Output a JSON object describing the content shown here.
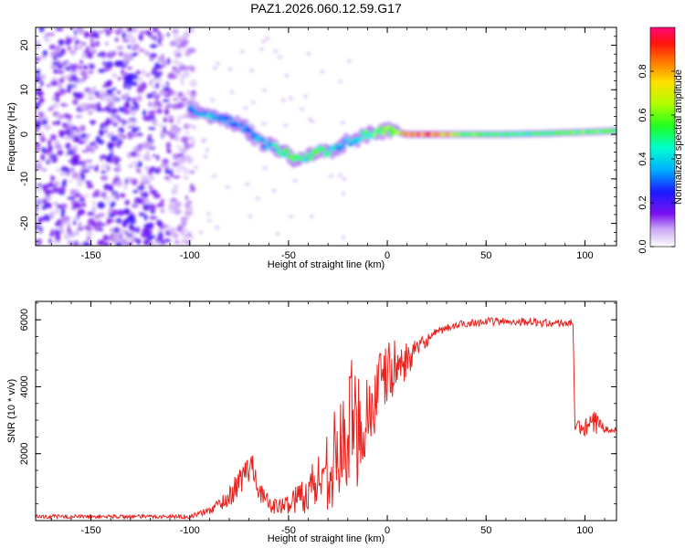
{
  "title": "PAZ1.2026.060.12.59.G17",
  "colors": {
    "background": "#ffffff",
    "snr_line": "#e8231f",
    "axis": "#000000"
  },
  "chart_data": [
    {
      "type": "heatmap",
      "name": "spectrogram",
      "xlabel": "Height of straight line (km)",
      "ylabel": "Frequency (Hz)",
      "xlim": [
        -178,
        116
      ],
      "ylim": [
        -25,
        24
      ],
      "xticks": [
        -150,
        -100,
        -50,
        0,
        50,
        100
      ],
      "xtick_labels": [
        "-150",
        "-100",
        "-50",
        "0",
        "50",
        "100"
      ],
      "yticks": [
        -20,
        -10,
        0,
        10,
        20
      ],
      "ytick_labels": [
        "-20",
        "-10",
        "0",
        "10",
        "20"
      ],
      "noise_region": {
        "x": [
          -178,
          -98
        ],
        "y": [
          -25,
          24
        ],
        "amplitude": 0.15
      },
      "ridge": {
        "x": [
          -100,
          -90,
          -80,
          -72,
          -65,
          -58,
          -50,
          -45,
          -40,
          -35,
          -30,
          -22,
          -15,
          -10,
          -5,
          0,
          5,
          10,
          20,
          40,
          60,
          80,
          100,
          116
        ],
        "freq": [
          5.5,
          4.5,
          3,
          1.5,
          -1.5,
          -3,
          -4.5,
          -6,
          -5,
          -3.5,
          -4,
          -2,
          -1,
          0,
          0.5,
          1,
          0.5,
          0,
          0,
          0,
          0,
          0.2,
          0.5,
          0.8
        ],
        "amplitude": [
          0.3,
          0.35,
          0.3,
          0.3,
          0.35,
          0.4,
          0.55,
          0.5,
          0.45,
          0.55,
          0.45,
          0.35,
          0.4,
          0.5,
          0.55,
          0.6,
          0.7,
          0.85,
          0.9,
          0.55,
          0.5,
          0.5,
          0.55,
          0.5
        ]
      }
    },
    {
      "type": "colorbar",
      "label": "Normalized spectral amplitude",
      "range": [
        0,
        1
      ],
      "ticks": [
        0.0,
        0.2,
        0.4,
        0.6,
        0.8
      ],
      "tick_labels": [
        "0.0",
        "0.2",
        "0.4",
        "0.6",
        "0.8"
      ]
    },
    {
      "type": "line",
      "name": "snr",
      "xlabel": "Height of straight line (km)",
      "ylabel": "SNR (10 * v/v)",
      "xlim": [
        -178,
        116
      ],
      "ylim": [
        0,
        6550
      ],
      "xticks": [
        -150,
        -100,
        -50,
        0,
        50,
        100
      ],
      "xtick_labels": [
        "-150",
        "-100",
        "-50",
        "0",
        "50",
        "100"
      ],
      "yticks": [
        2000,
        4000,
        6000
      ],
      "ytick_labels": [
        "2000",
        "4000",
        "6000"
      ],
      "series": [
        {
          "name": "SNR",
          "x": [
            -178,
            -100,
            -90,
            -80,
            -72,
            -68,
            -65,
            -60,
            -55,
            -50,
            -45,
            -40,
            -35,
            -30,
            -25,
            -20,
            -18,
            -15,
            -10,
            -5,
            0,
            5,
            10,
            15,
            20,
            25,
            30,
            40,
            50,
            60,
            70,
            80,
            90,
            94,
            95,
            100,
            105,
            110,
            116
          ],
          "y": [
            120,
            120,
            300,
            700,
            1400,
            1700,
            900,
            500,
            400,
            500,
            700,
            900,
            1200,
            1600,
            2000,
            2400,
            3000,
            2800,
            3200,
            3800,
            4400,
            4600,
            4800,
            5100,
            5400,
            5600,
            5750,
            5900,
            5950,
            5950,
            5950,
            5900,
            5900,
            5900,
            2800,
            2750,
            2900,
            2800,
            2700
          ],
          "noise": [
            60,
            60,
            120,
            300,
            500,
            400,
            300,
            250,
            250,
            300,
            500,
            700,
            900,
            1300,
            1500,
            1700,
            1900,
            1800,
            1500,
            1200,
            1000,
            800,
            500,
            300,
            200,
            150,
            120,
            120,
            120,
            120,
            120,
            120,
            120,
            120,
            150,
            300,
            400,
            150,
            100
          ]
        }
      ]
    }
  ]
}
